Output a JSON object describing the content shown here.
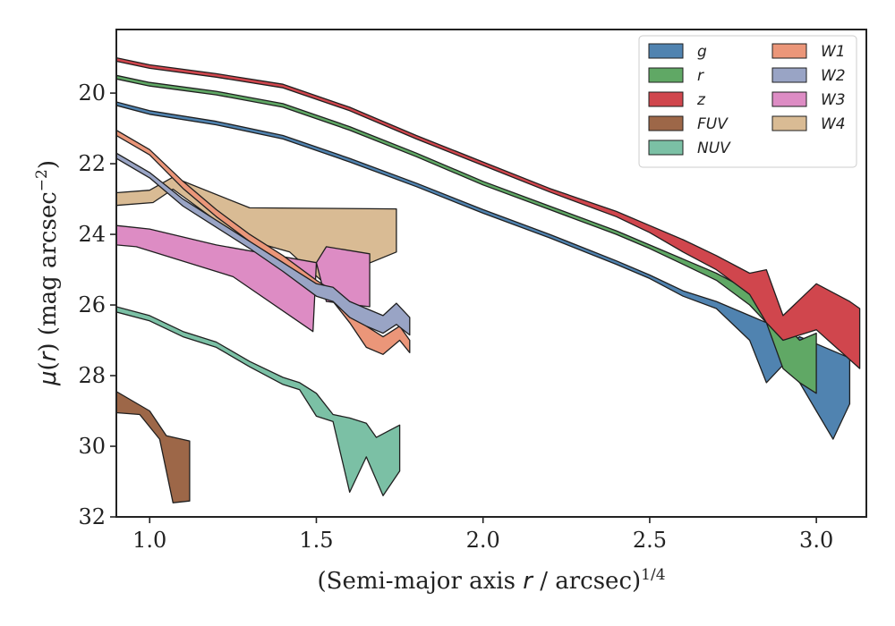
{
  "chart_data": {
    "type": "area",
    "xlabel": "(Semi-major axis r / arcsec)^1/4",
    "ylabel": "μ(r) (mag arcsec^−2)",
    "xlim": [
      0.9,
      3.15
    ],
    "ylim": [
      32,
      18.2
    ],
    "y_inverted": true,
    "xticks": [
      "1.0",
      "1.5",
      "2.0",
      "2.5",
      "3.0"
    ],
    "yticks": [
      "20",
      "22",
      "24",
      "26",
      "28",
      "30",
      "32"
    ],
    "legend_position": "top-right",
    "legend_columns": 2,
    "legend": [
      "g",
      "r",
      "z",
      "FUV",
      "NUV",
      "W1",
      "W2",
      "W3",
      "W4"
    ],
    "series": [
      {
        "name": "W4",
        "color": "#d9bb94",
        "upper": [
          [
            0.9,
            22.82
          ],
          [
            1.0,
            22.75
          ],
          [
            1.07,
            22.38
          ],
          [
            1.3,
            23.25
          ],
          [
            1.74,
            23.28
          ]
        ],
        "lower": [
          [
            0.9,
            23.18
          ],
          [
            1.01,
            23.1
          ],
          [
            1.07,
            22.72
          ],
          [
            1.27,
            24.1
          ],
          [
            1.42,
            24.5
          ],
          [
            1.52,
            25.35
          ],
          [
            1.74,
            24.5
          ]
        ]
      },
      {
        "name": "W3",
        "color": "#dd8cc4",
        "upper": [
          [
            0.9,
            23.75
          ],
          [
            1.0,
            23.85
          ],
          [
            1.2,
            24.3
          ],
          [
            1.5,
            24.8
          ],
          [
            1.53,
            24.35
          ],
          [
            1.66,
            24.55
          ]
        ],
        "lower": [
          [
            0.9,
            24.3
          ],
          [
            0.96,
            24.35
          ],
          [
            1.25,
            25.2
          ],
          [
            1.49,
            26.75
          ],
          [
            1.5,
            24.8
          ],
          [
            1.53,
            25.9
          ],
          [
            1.66,
            26.05
          ]
        ]
      },
      {
        "name": "W1",
        "color": "#eb9679",
        "upper": [
          [
            0.9,
            21.05
          ],
          [
            1.0,
            21.6
          ],
          [
            1.1,
            22.5
          ],
          [
            1.2,
            23.3
          ],
          [
            1.3,
            24.0
          ],
          [
            1.4,
            24.6
          ],
          [
            1.5,
            25.3
          ],
          [
            1.55,
            25.6
          ],
          [
            1.6,
            26.05
          ],
          [
            1.65,
            26.6
          ],
          [
            1.7,
            26.9
          ],
          [
            1.75,
            26.6
          ],
          [
            1.78,
            27.0
          ]
        ],
        "lower": [
          [
            0.9,
            21.2
          ],
          [
            1.0,
            21.75
          ],
          [
            1.1,
            22.7
          ],
          [
            1.2,
            23.5
          ],
          [
            1.3,
            24.2
          ],
          [
            1.4,
            24.8
          ],
          [
            1.5,
            25.5
          ],
          [
            1.55,
            25.9
          ],
          [
            1.6,
            26.5
          ],
          [
            1.65,
            27.2
          ],
          [
            1.7,
            27.4
          ],
          [
            1.75,
            27.0
          ],
          [
            1.78,
            27.35
          ]
        ]
      },
      {
        "name": "W2",
        "color": "#99a4c5",
        "upper": [
          [
            0.9,
            21.7
          ],
          [
            1.0,
            22.25
          ],
          [
            1.1,
            23.0
          ],
          [
            1.2,
            23.6
          ],
          [
            1.3,
            24.2
          ],
          [
            1.4,
            24.8
          ],
          [
            1.5,
            25.4
          ],
          [
            1.55,
            25.5
          ],
          [
            1.6,
            25.9
          ],
          [
            1.65,
            26.1
          ],
          [
            1.7,
            26.3
          ],
          [
            1.74,
            25.95
          ],
          [
            1.78,
            26.35
          ]
        ],
        "lower": [
          [
            0.9,
            21.85
          ],
          [
            1.0,
            22.4
          ],
          [
            1.1,
            23.2
          ],
          [
            1.2,
            23.8
          ],
          [
            1.3,
            24.4
          ],
          [
            1.4,
            25.05
          ],
          [
            1.5,
            25.75
          ],
          [
            1.55,
            25.9
          ],
          [
            1.6,
            26.35
          ],
          [
            1.65,
            26.6
          ],
          [
            1.7,
            26.8
          ],
          [
            1.74,
            26.55
          ],
          [
            1.78,
            26.85
          ]
        ]
      },
      {
        "name": "NUV",
        "color": "#7bc0a5",
        "upper": [
          [
            0.9,
            26.05
          ],
          [
            1.0,
            26.3
          ],
          [
            1.1,
            26.75
          ],
          [
            1.2,
            27.05
          ],
          [
            1.3,
            27.6
          ],
          [
            1.4,
            28.05
          ],
          [
            1.45,
            28.2
          ],
          [
            1.5,
            28.5
          ],
          [
            1.55,
            29.1
          ],
          [
            1.6,
            29.2
          ],
          [
            1.65,
            29.35
          ],
          [
            1.68,
            29.75
          ],
          [
            1.72,
            29.55
          ],
          [
            1.75,
            29.4
          ]
        ],
        "lower": [
          [
            0.9,
            26.2
          ],
          [
            1.0,
            26.45
          ],
          [
            1.1,
            26.9
          ],
          [
            1.2,
            27.2
          ],
          [
            1.3,
            27.75
          ],
          [
            1.4,
            28.25
          ],
          [
            1.45,
            28.4
          ],
          [
            1.5,
            29.15
          ],
          [
            1.55,
            29.3
          ],
          [
            1.6,
            31.3
          ],
          [
            1.65,
            30.3
          ],
          [
            1.7,
            31.4
          ],
          [
            1.75,
            30.7
          ]
        ]
      },
      {
        "name": "FUV",
        "color": "#9d6748",
        "upper": [
          [
            0.9,
            28.45
          ],
          [
            1.0,
            29.0
          ],
          [
            1.05,
            29.7
          ],
          [
            1.12,
            29.85
          ]
        ],
        "lower": [
          [
            0.9,
            29.05
          ],
          [
            0.97,
            29.1
          ],
          [
            1.03,
            29.8
          ],
          [
            1.07,
            31.6
          ],
          [
            1.12,
            31.55
          ]
        ]
      },
      {
        "name": "g",
        "color": "#5083b0",
        "upper": [
          [
            0.9,
            20.25
          ],
          [
            1.0,
            20.5
          ],
          [
            1.2,
            20.8
          ],
          [
            1.4,
            21.2
          ],
          [
            1.6,
            21.85
          ],
          [
            1.8,
            22.55
          ],
          [
            2.0,
            23.3
          ],
          [
            2.2,
            24.0
          ],
          [
            2.4,
            24.75
          ],
          [
            2.5,
            25.15
          ],
          [
            2.6,
            25.6
          ],
          [
            2.7,
            25.9
          ],
          [
            2.8,
            26.3
          ],
          [
            2.85,
            26.5
          ],
          [
            2.9,
            27.2
          ],
          [
            2.95,
            26.9
          ],
          [
            3.1,
            27.5
          ]
        ],
        "lower": [
          [
            0.9,
            20.35
          ],
          [
            1.0,
            20.6
          ],
          [
            1.2,
            20.9
          ],
          [
            1.4,
            21.3
          ],
          [
            1.6,
            21.95
          ],
          [
            1.8,
            22.65
          ],
          [
            2.0,
            23.4
          ],
          [
            2.2,
            24.1
          ],
          [
            2.4,
            24.85
          ],
          [
            2.5,
            25.25
          ],
          [
            2.6,
            25.75
          ],
          [
            2.7,
            26.1
          ],
          [
            2.8,
            27.0
          ],
          [
            2.85,
            28.2
          ],
          [
            2.9,
            27.7
          ],
          [
            2.95,
            28.2
          ],
          [
            3.0,
            29.0
          ],
          [
            3.05,
            29.8
          ],
          [
            3.1,
            28.8
          ]
        ]
      },
      {
        "name": "r",
        "color": "#60a865",
        "upper": [
          [
            0.9,
            19.5
          ],
          [
            1.0,
            19.7
          ],
          [
            1.2,
            19.95
          ],
          [
            1.4,
            20.3
          ],
          [
            1.6,
            20.95
          ],
          [
            1.8,
            21.7
          ],
          [
            2.0,
            22.5
          ],
          [
            2.2,
            23.2
          ],
          [
            2.4,
            23.9
          ],
          [
            2.5,
            24.3
          ],
          [
            2.6,
            24.7
          ],
          [
            2.7,
            25.1
          ],
          [
            2.8,
            25.6
          ],
          [
            2.85,
            26.0
          ],
          [
            2.9,
            26.5
          ],
          [
            2.95,
            27.0
          ],
          [
            3.0,
            26.8
          ]
        ],
        "lower": [
          [
            0.9,
            19.6
          ],
          [
            1.0,
            19.8
          ],
          [
            1.2,
            20.05
          ],
          [
            1.4,
            20.4
          ],
          [
            1.6,
            21.05
          ],
          [
            1.8,
            21.8
          ],
          [
            2.0,
            22.6
          ],
          [
            2.2,
            23.3
          ],
          [
            2.4,
            24.0
          ],
          [
            2.5,
            24.4
          ],
          [
            2.6,
            24.85
          ],
          [
            2.7,
            25.3
          ],
          [
            2.8,
            26.0
          ],
          [
            2.85,
            26.5
          ],
          [
            2.9,
            27.8
          ],
          [
            2.95,
            28.2
          ],
          [
            3.0,
            28.5
          ]
        ]
      },
      {
        "name": "z",
        "color": "#d0464d",
        "upper": [
          [
            0.9,
            19.0
          ],
          [
            1.0,
            19.2
          ],
          [
            1.2,
            19.45
          ],
          [
            1.4,
            19.75
          ],
          [
            1.6,
            20.4
          ],
          [
            1.8,
            21.2
          ],
          [
            2.0,
            21.95
          ],
          [
            2.2,
            22.7
          ],
          [
            2.4,
            23.35
          ],
          [
            2.5,
            23.75
          ],
          [
            2.6,
            24.15
          ],
          [
            2.7,
            24.6
          ],
          [
            2.8,
            25.1
          ],
          [
            2.85,
            25.0
          ],
          [
            2.9,
            26.3
          ],
          [
            3.0,
            25.4
          ],
          [
            3.1,
            25.9
          ],
          [
            3.13,
            26.1
          ]
        ],
        "lower": [
          [
            0.9,
            19.1
          ],
          [
            1.0,
            19.3
          ],
          [
            1.2,
            19.55
          ],
          [
            1.4,
            19.85
          ],
          [
            1.6,
            20.5
          ],
          [
            1.8,
            21.3
          ],
          [
            2.0,
            22.05
          ],
          [
            2.2,
            22.8
          ],
          [
            2.4,
            23.5
          ],
          [
            2.5,
            23.95
          ],
          [
            2.6,
            24.5
          ],
          [
            2.7,
            25.0
          ],
          [
            2.8,
            25.7
          ],
          [
            2.85,
            26.5
          ],
          [
            2.9,
            27.0
          ],
          [
            3.0,
            26.7
          ],
          [
            3.13,
            27.8
          ]
        ]
      }
    ]
  }
}
